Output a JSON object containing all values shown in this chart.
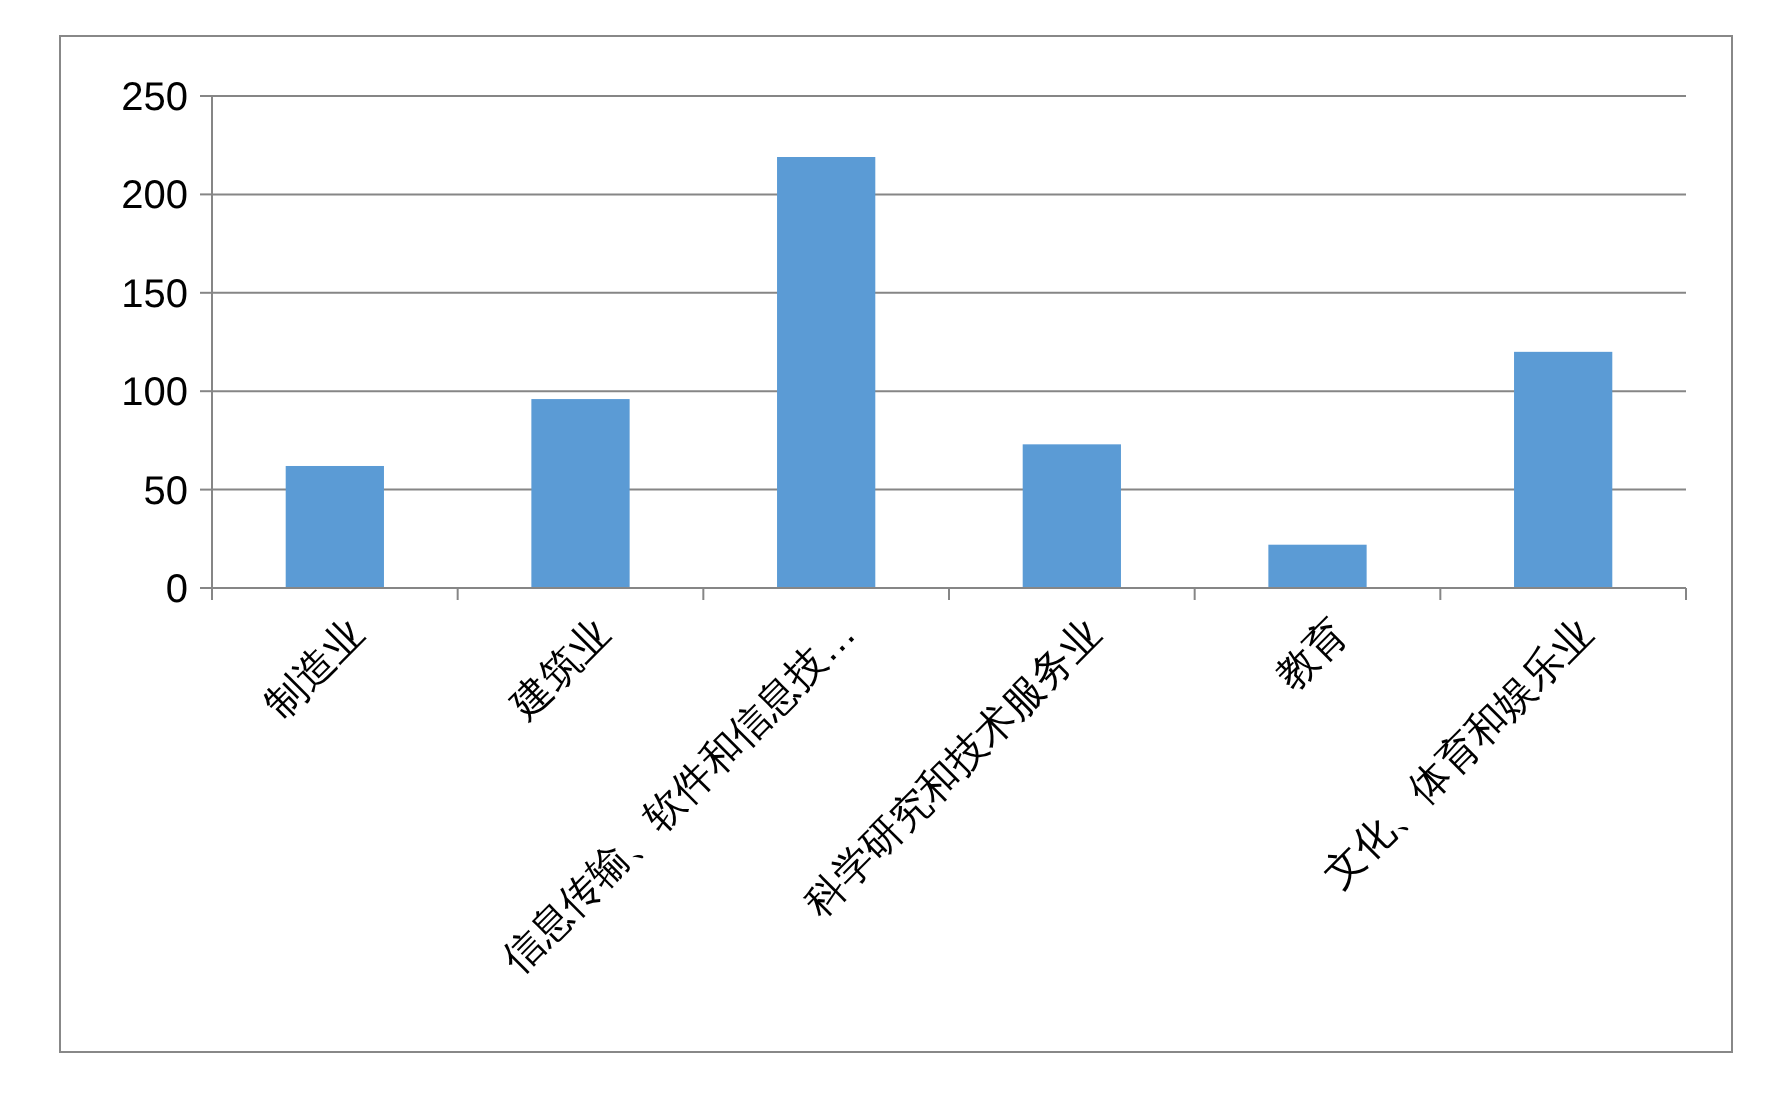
{
  "chart_data": {
    "type": "bar",
    "categories": [
      "制造业",
      "建筑业",
      "信息传输、软件和信息技…",
      "科学研究和技术服务业",
      "教育",
      "文化、体育和娱乐业"
    ],
    "values": [
      62,
      96,
      219,
      73,
      22,
      120
    ],
    "color": "#5b9bd5",
    "ylim": [
      0,
      250
    ],
    "yticks": [
      0,
      50,
      100,
      150,
      200,
      250
    ],
    "grid": "y"
  }
}
